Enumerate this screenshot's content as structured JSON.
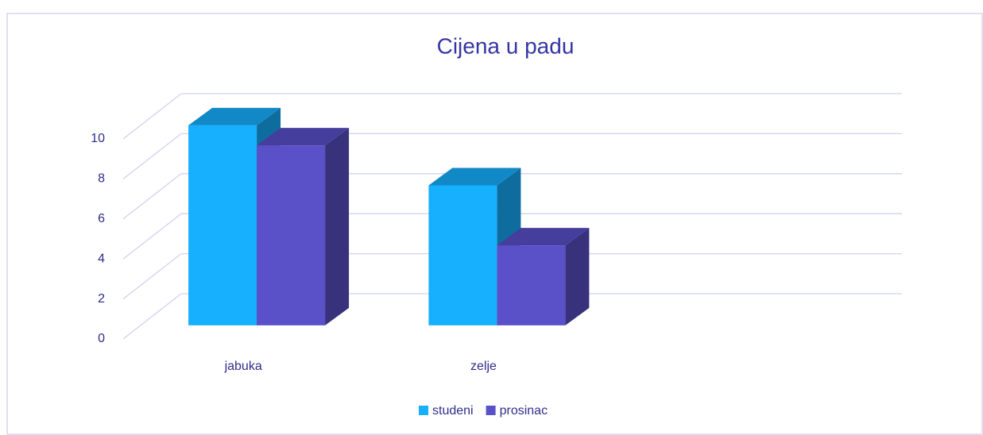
{
  "chart_data": {
    "type": "bar3d",
    "title": "Cijena u padu",
    "categories": [
      "jabuka",
      "zelje",
      null
    ],
    "series": [
      {
        "name": "studeni",
        "color": "#17b0ff",
        "values": [
          10,
          7,
          null
        ]
      },
      {
        "name": "prosinac",
        "color": "#5a50c8",
        "values": [
          9,
          4,
          null
        ]
      }
    ],
    "ylim": [
      0,
      10
    ],
    "yticks": [
      0,
      2,
      4,
      6,
      8,
      10
    ],
    "grid": true,
    "legend": "bottom"
  }
}
